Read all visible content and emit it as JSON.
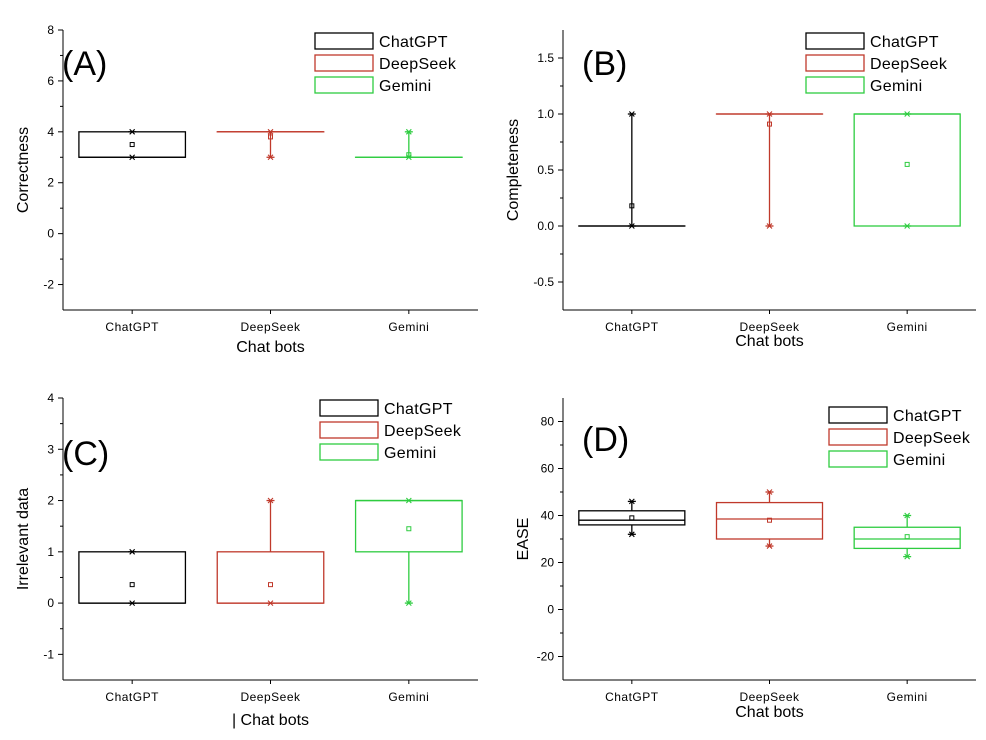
{
  "chart_data": [
    {
      "type": "box",
      "panel_label": "(A)",
      "xlabel": "Chat bots",
      "ylabel": "Correctness",
      "ylim": [
        -3,
        8
      ],
      "y_ticks": [
        -2,
        0,
        2,
        4,
        6,
        8
      ],
      "categories": [
        "ChatGPT",
        "DeepSeek",
        "Gemini"
      ],
      "legend": [
        "ChatGPT",
        "DeepSeek",
        "Gemini"
      ],
      "legend_position": "top-right",
      "series": [
        {
          "name": "ChatGPT",
          "color": "#000000",
          "q1": 3,
          "median": 3,
          "q3": 4,
          "whisker_low": 3,
          "whisker_high": 4,
          "mean": 3.5,
          "min": 3,
          "max": 4
        },
        {
          "name": "DeepSeek",
          "color": "#c0392b",
          "q1": 4,
          "median": 4,
          "q3": 4,
          "whisker_low": 3,
          "whisker_high": 4,
          "mean": 3.8,
          "min": 3,
          "max": 4
        },
        {
          "name": "Gemini",
          "color": "#2ecc40",
          "q1": 3,
          "median": 3,
          "q3": 3,
          "whisker_low": 3,
          "whisker_high": 4,
          "mean": 3.1,
          "min": 3,
          "max": 4
        }
      ]
    },
    {
      "type": "box",
      "panel_label": "(B)",
      "xlabel": "Chat bots",
      "ylabel": "Completeness",
      "ylim": [
        -0.75,
        1.75
      ],
      "y_ticks": [
        -0.5,
        0.0,
        0.5,
        1.0,
        1.5
      ],
      "y_tick_labels": [
        "-0.5",
        "0.0",
        "0.5",
        "1.0",
        "1.5"
      ],
      "categories": [
        "ChatGPT",
        "DeepSeek",
        "Gemini"
      ],
      "legend": [
        "ChatGPT",
        "DeepSeek",
        "Gemini"
      ],
      "legend_position": "top-right",
      "series": [
        {
          "name": "ChatGPT",
          "color": "#000000",
          "q1": 0,
          "median": 0,
          "q3": 0,
          "whisker_low": 0,
          "whisker_high": 1,
          "mean": 0.18,
          "min": 0,
          "max": 1
        },
        {
          "name": "DeepSeek",
          "color": "#c0392b",
          "q1": 1,
          "median": 1,
          "q3": 1,
          "whisker_low": 0,
          "whisker_high": 1,
          "mean": 0.91,
          "min": 0,
          "max": 1
        },
        {
          "name": "Gemini",
          "color": "#2ecc40",
          "q1": 0,
          "median": 1,
          "q3": 1,
          "whisker_low": 0,
          "whisker_high": 1,
          "mean": 0.55,
          "min": 0,
          "max": 1
        }
      ]
    },
    {
      "type": "box",
      "panel_label": "(C)",
      "xlabel": "| Chat bots",
      "ylabel": "Irrelevant data",
      "ylim": [
        -1.5,
        4
      ],
      "y_ticks": [
        -1,
        0,
        1,
        2,
        3,
        4
      ],
      "categories": [
        "ChatGPT",
        "DeepSeek",
        "Gemini"
      ],
      "legend": [
        "ChatGPT",
        "DeepSeek",
        "Gemini"
      ],
      "legend_position": "top-right",
      "series": [
        {
          "name": "ChatGPT",
          "color": "#000000",
          "q1": 0,
          "median": 0,
          "q3": 1,
          "whisker_low": 0,
          "whisker_high": 1,
          "mean": 0.36,
          "min": 0,
          "max": 1
        },
        {
          "name": "DeepSeek",
          "color": "#c0392b",
          "q1": 0,
          "median": 0,
          "q3": 1,
          "whisker_low": 0,
          "whisker_high": 2,
          "mean": 0.36,
          "min": 0,
          "max": 2
        },
        {
          "name": "Gemini",
          "color": "#2ecc40",
          "q1": 1,
          "median": 2,
          "q3": 2,
          "whisker_low": 0,
          "whisker_high": 2,
          "mean": 1.45,
          "min": 0,
          "max": 2
        }
      ]
    },
    {
      "type": "box",
      "panel_label": "(D)",
      "xlabel": "Chat bots",
      "ylabel": "EASE",
      "ylim": [
        -30,
        90
      ],
      "y_ticks": [
        -20,
        0,
        20,
        40,
        60,
        80
      ],
      "categories": [
        "ChatGPT",
        "DeepSeek",
        "Gemini"
      ],
      "legend": [
        "ChatGPT",
        "DeepSeek",
        "Gemini"
      ],
      "legend_position": "top-right",
      "series": [
        {
          "name": "ChatGPT",
          "color": "#000000",
          "q1": 36,
          "median": 38,
          "q3": 42,
          "whisker_low": 32,
          "whisker_high": 46,
          "mean": 39,
          "min": 32,
          "max": 46
        },
        {
          "name": "DeepSeek",
          "color": "#c0392b",
          "q1": 30,
          "median": 38.5,
          "q3": 45.5,
          "whisker_low": 27,
          "whisker_high": 50,
          "mean": 38,
          "min": 27,
          "max": 50
        },
        {
          "name": "Gemini",
          "color": "#2ecc40",
          "q1": 26,
          "median": 30,
          "q3": 35,
          "whisker_low": 22.5,
          "whisker_high": 40,
          "mean": 31,
          "min": 22.5,
          "max": 40
        }
      ]
    }
  ]
}
